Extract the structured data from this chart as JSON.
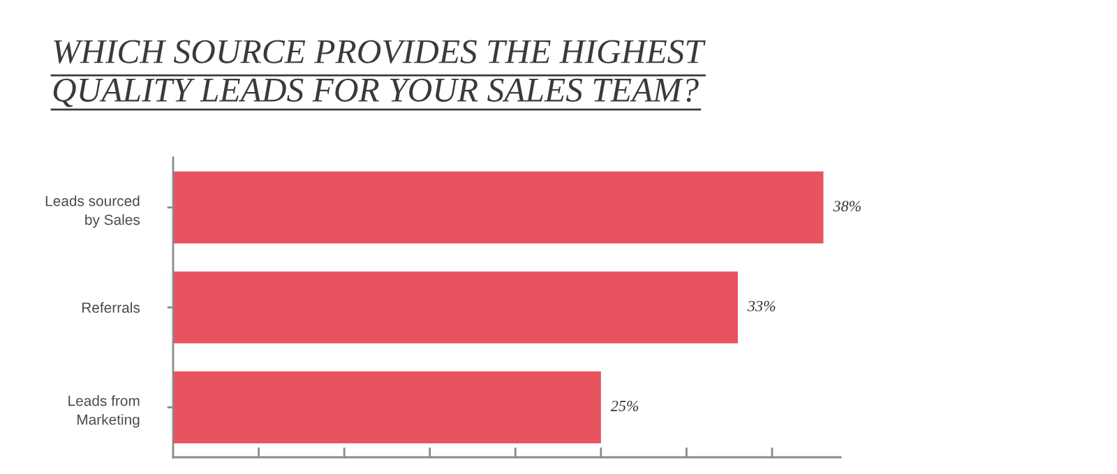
{
  "chart_data": {
    "type": "bar",
    "orientation": "horizontal",
    "title": "WHICH SOURCE PROVIDES THE HIGHEST\nQUALITY LEADS FOR YOUR SALES TEAM?",
    "categories": [
      "Leads sourced\nby Sales",
      "Referrals",
      "Leads from\nMarketing"
    ],
    "values": [
      38,
      33,
      25
    ],
    "value_labels": [
      "38%",
      "33%",
      "25%"
    ],
    "color": "#e75460",
    "xlim": [
      0,
      39
    ],
    "xticks": [
      {
        "value": 5,
        "label": null
      },
      {
        "value": 10,
        "label": null
      },
      {
        "value": 15,
        "label": null
      },
      {
        "value": 20,
        "label": null
      },
      {
        "value": 25,
        "label": null
      },
      {
        "value": 30,
        "label": null
      },
      {
        "value": 35,
        "label": null
      }
    ],
    "tick_labels": "y",
    "grid": false
  }
}
